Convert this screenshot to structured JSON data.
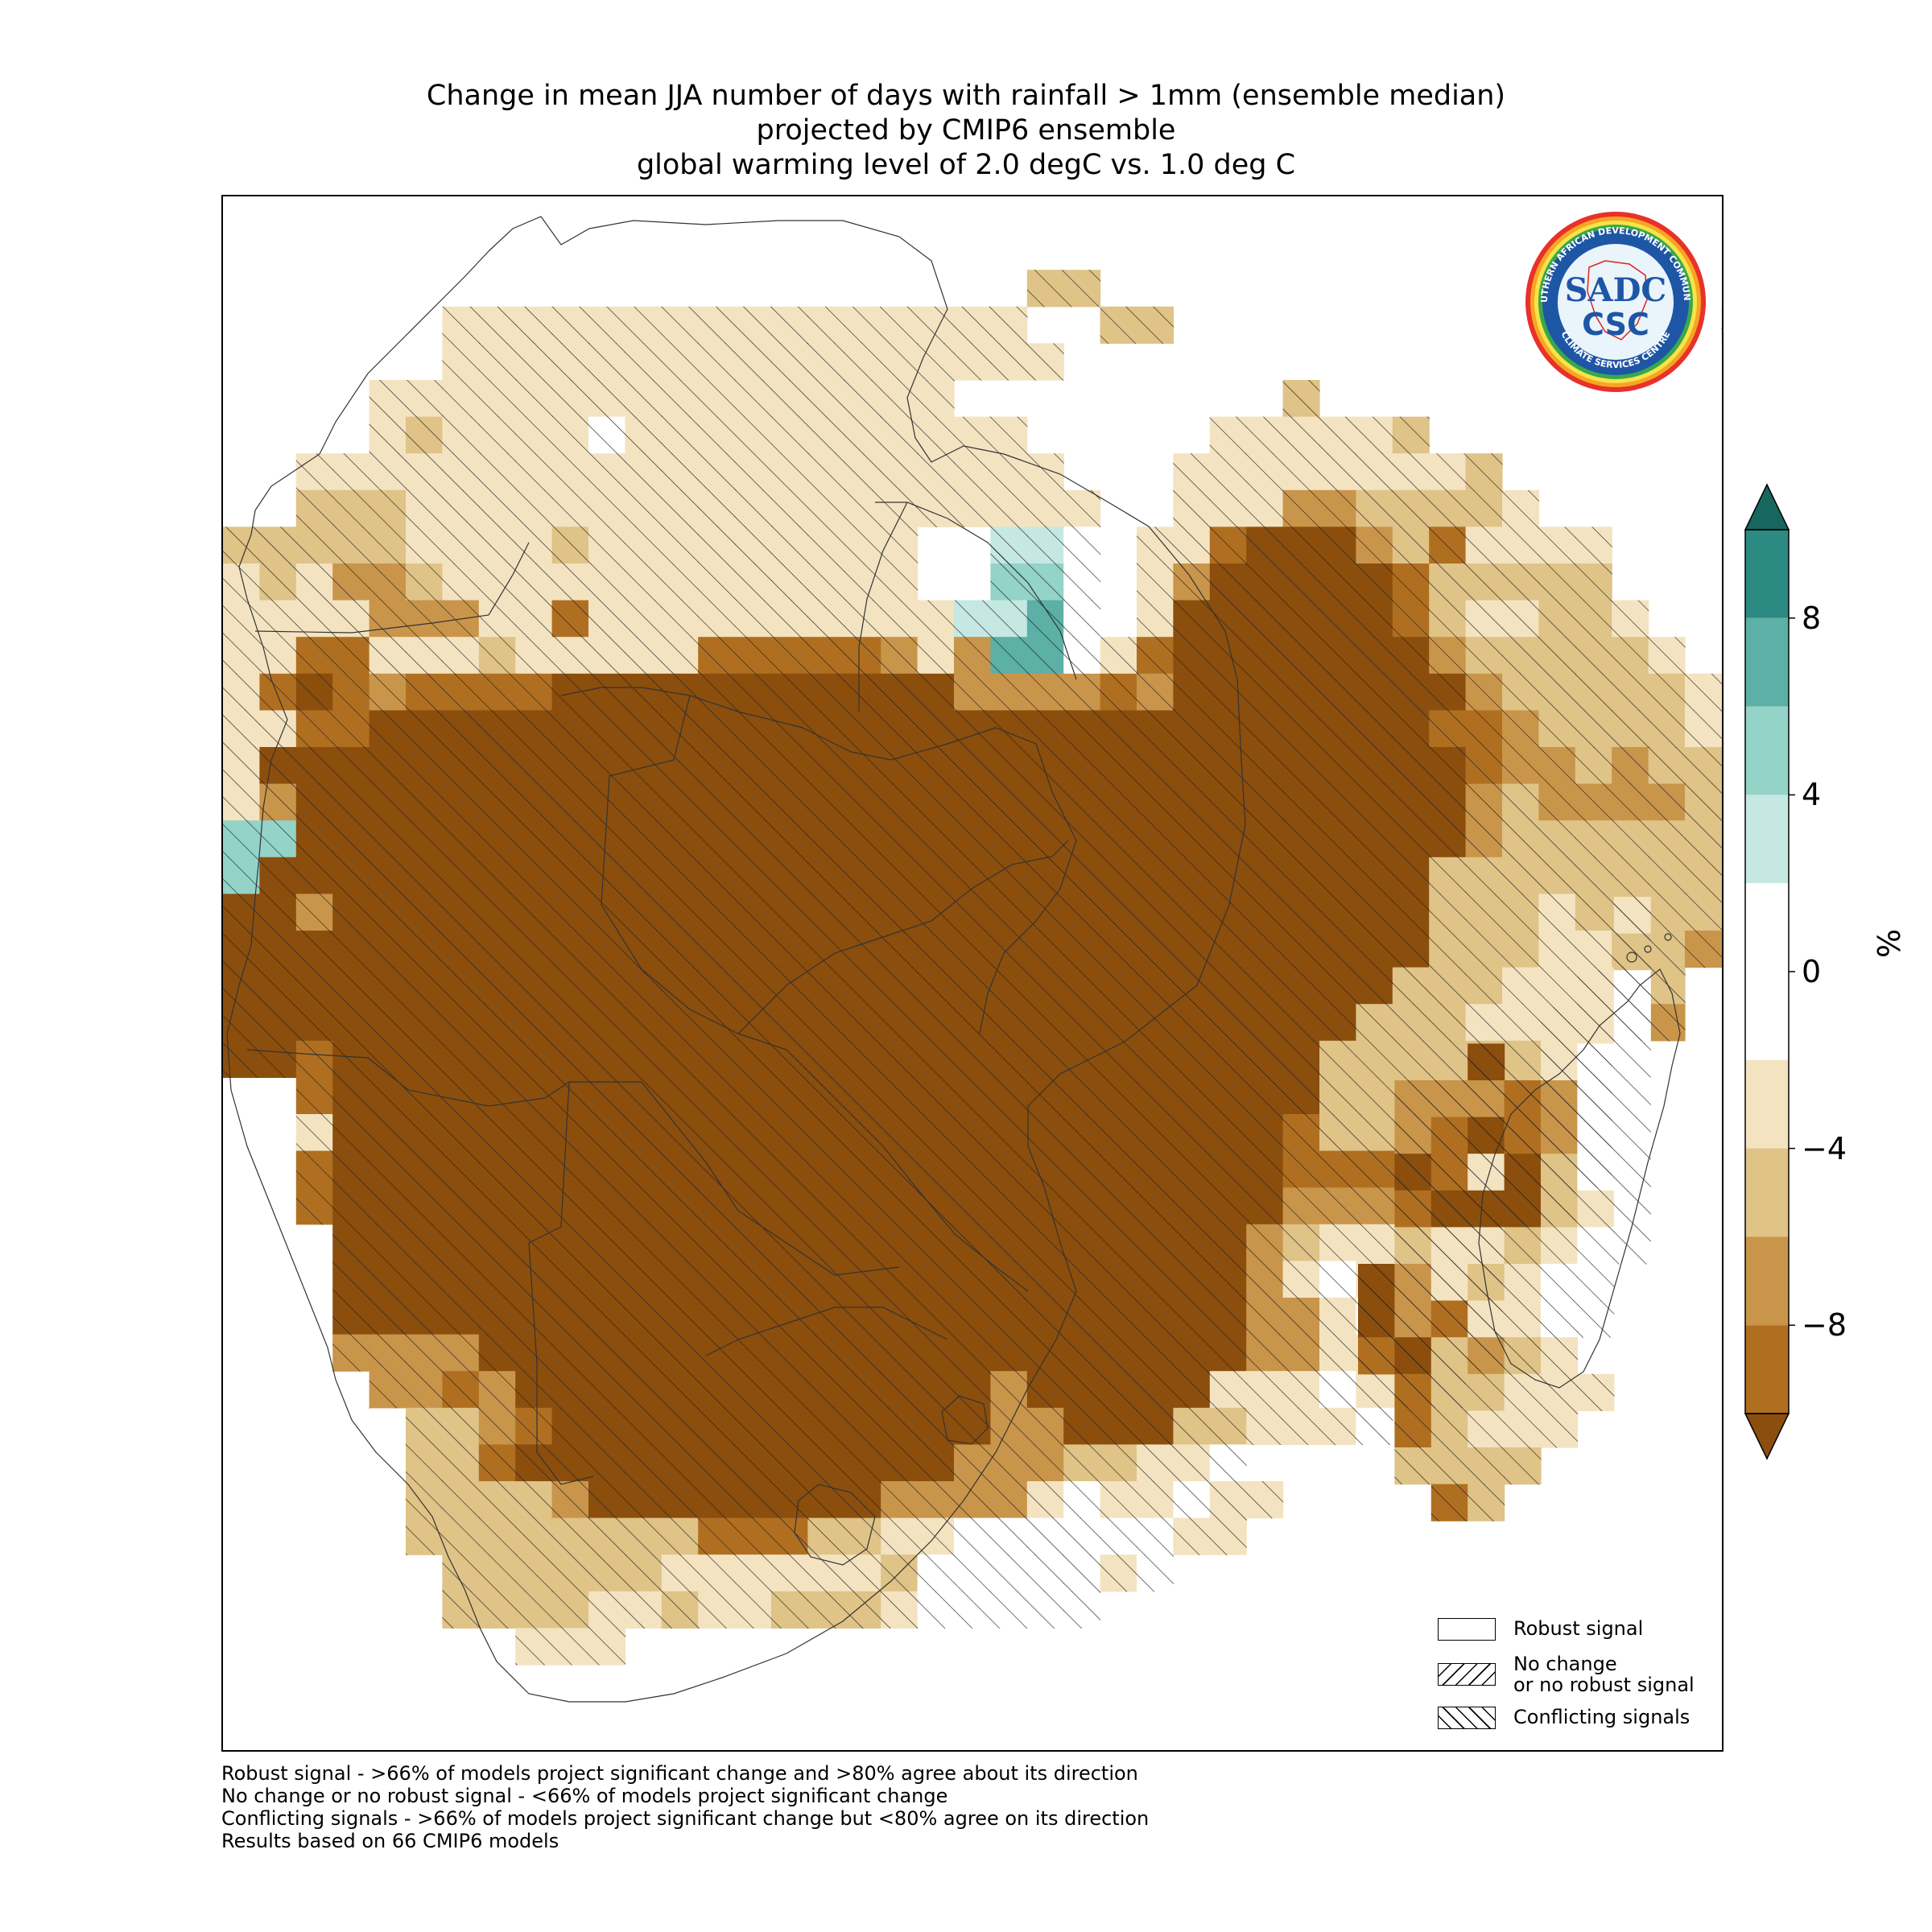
{
  "title": {
    "line1": "Change in mean JJA number of days with rainfall > 1mm (ensemble median)",
    "line2": "projected by CMIP6 ensemble",
    "line3": "global warming level of 2.0 degC vs. 1.0 deg C"
  },
  "legend": {
    "items": [
      {
        "label": "Robust signal",
        "pattern": "none"
      },
      {
        "label": "No change\nor no robust signal",
        "pattern": "forward-hatch"
      },
      {
        "label": "Conflicting signals",
        "pattern": "back-hatch"
      }
    ]
  },
  "colorbar": {
    "unit": "%",
    "min": -10,
    "max": 10,
    "extend": "both",
    "ticks": [
      8,
      4,
      0,
      -4,
      -8
    ],
    "tick_labels": [
      "8",
      "4",
      "0",
      "−4",
      "−8"
    ],
    "bins": [
      {
        "from": 8,
        "to": 10,
        "color": "#2b8a82"
      },
      {
        "from": 6,
        "to": 8,
        "color": "#5cb0a6"
      },
      {
        "from": 4,
        "to": 6,
        "color": "#93d3c8"
      },
      {
        "from": 2,
        "to": 4,
        "color": "#c6e8e2"
      },
      {
        "from": -2,
        "to": 2,
        "color": "#ffffff"
      },
      {
        "from": -4,
        "to": -2,
        "color": "#f4e3c1"
      },
      {
        "from": -6,
        "to": -4,
        "color": "#dfc387"
      },
      {
        "from": -8,
        "to": -6,
        "color": "#c9954a"
      },
      {
        "from": -10,
        "to": -8,
        "color": "#b06f20"
      }
    ],
    "over_color": "#17675f",
    "under_color": "#8b4e0d"
  },
  "footnotes": [
    "Robust signal - >66% of models project significant change and >80% agree about its direction",
    "No change or no robust signal - <66% of models project significant change",
    "Conflicting signals - >66% of models project significant change but <80% agree on its direction",
    "Results based on 66 CMIP6 models"
  ],
  "logo": {
    "text_main": "SADC",
    "text_sub": "CSC",
    "ring_text_top": "SOUTHERN AFRICAN DEVELOPMENT COMMUNITY",
    "ring_text_bottom": "CLIMATE SERVICES CENTRE"
  },
  "map_data": {
    "region": "Southern Africa (SADC)",
    "variable": "Change in mean JJA number of days with rainfall > 1mm",
    "units": "%",
    "value_classes": {
      "D": -12,
      "C": -9,
      "B": -7,
      "A": -5,
      "L": -3,
      "W": 0,
      "1": 3,
      "2": 5,
      "3": 7,
      "4": 9
    },
    "mainland_rows": [
      "............................................",
      "............................................",
      "......................AA....................",
      "......LLLLLLLLLLLLLLLL..AA...............LL.",
      "......LLLLLLLLLLLLLLLLL....................L",
      "....LLLLLLLLLLLLLLLL.........A.............",
      "....LALLLLWLLLLLLLLLLL.....LLLLLA..........",
      "..LLLLLLLLLLLLLLLLLLLLL...LLLLLLLLA........",
      "..AAALLLLLLLLLLLLLLLLLLL..LLLBBAAAAL.......",
      "AAAAALLLLALLLLLLLLL..11W.LLCDDDBACLLLL.....",
      "LALBBALLLLLLLLLLLLL..22W.LBDDDDDCAAAAA.....",
      "LLLLBBBLLCLLLLLLLLLL113W.LDDDDDDCALLAAL....",
      "LLCCLLLALLLLLCCCCCBLB33WLCDDDDDDDBAAAAAL...",
      "LCDCBCCCCDDDDDDDDDDDBBBBCBDDDDDDDDBAAAAAL..",
      "LLCCDDDDDDDDDDDDDDDDDDDDDDDDDDDDDCCBAAAAL..",
      "LDDDDDDDDDDDDDDDDDDDDDDDDDDDDDDDDDCBBABAA..",
      "LBDDDDDDDDDDDDDDDDDDDDDDDDDDDDDDDDBABBBBA..",
      "22DDDDDDDDDDDDDDDDDDDDDDDDDDDDDDDDBAAAAAA..",
      "2DDDDDDDDDDDDDDDDDDDDDDDDDDDDDDDDAAAAAAAA..",
      "DDBDDDDDDDDDDDDDDDDDDDDDDDDDDDDDDAAALAAAA..",
      "DDDDDDDDDDDDDDDDDDDDDDDDDDDDDDDDDAAALLAAB..",
      "DDDDDDDDDDDDDDDDDDDDDDDDDDDDDDDDAAALLLLA...",
      "DDDDDDDDDDDDDDDDDDDDDDDDDDDDDDDAAALLLLLB...",
      "DDCDDDDDDDDDDDDDDDDDDDDDDDDDDDAAAAAAAA.....",
      "..CDDDDDDDDDDDDDDDDDDDDDDDDDDDAAAAAAAA.....",
      "..LDDDDDDDDDDDDDDDDDDDDDDDDDDCAAAAAAAA.....",
      "..CDDDDDDDDDDDDDDDDDDDDDDDDDDCCCCCBBBB.....",
      "..CDDDDDDDDDDDDDDDDDDDDDDDDDDBBBBBBBB......",
      "...DDDDDDDDDDDDDDDDDDDDDDDDDBALLLBB........",
      "...DDDDDDDDDDDDDDDDDDDDDDDDDBLWLLLL........",
      "...DDDDDDDDDDDDDDDDDDDDDDDDDBBLWLLL........",
      "...BBBBDDDDDDDDDDDDDDDDDDDDDBBLLLLL........",
      "....BBCBDDDDDDDDDDDDDBDDDDDLLLWLLL.........",
      ".....AABCDDDDDDDDDDDDBBDDDAALLLW...........",
      ".....AACDDDDDDDDDDDDBBBAALLW...............",
      ".....AAAABDDDDDDDDBBBBLWLLWLL..............",
      ".....AAAAAAAACCCAALLWWWWWWLL...............",
      "......AAAAAALLLLLLAWWWWWLW.................",
      "......AAAALLALLAAALWWWWW...................",
      "........LLL................................"
    ],
    "madagascar_rows": [
      ".......L",
      ".......A",
      "......LW",
      ".....LLW",
      "...D.LWW",
      ".BBBCBWW",
      ".BCDCBWW",
      ".DCLDAWW",
      ".CDDDALW",
      ".ALLALWW",
      "DBLALWW.",
      "DBCLLWW.",
      "CDABAL..",
      ".CAALLL.",
      ".CALLL..",
      ".AAAA...",
      "..CA...."
    ]
  }
}
